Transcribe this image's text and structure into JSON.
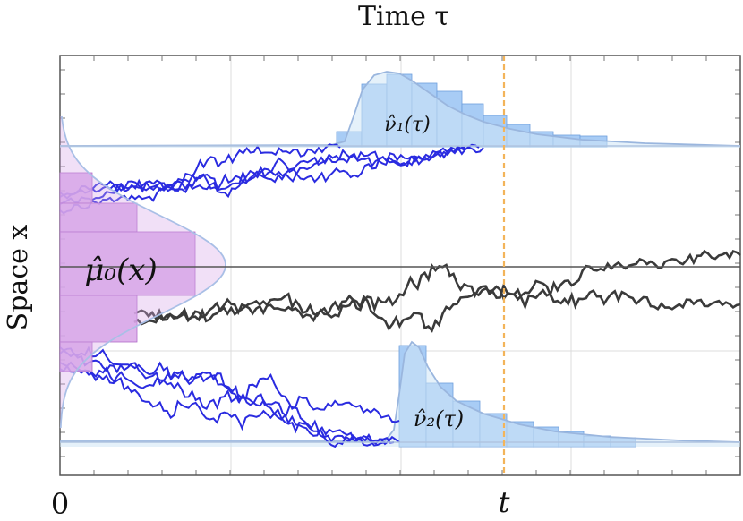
{
  "labels": {
    "x_axis": "Time τ",
    "y_axis": "Space x",
    "origin": "0",
    "t_marker": "t",
    "mu0": "μ̂₀(x)",
    "nu1": "ν̂₁(τ)",
    "nu2": "ν̂₂(τ)"
  },
  "colors": {
    "blue_path": "#2a2be0",
    "black_path": "#3a3a3a",
    "mu_fill": "#d8a6e8",
    "mu_stroke": "#b06cc8",
    "nu_fill": "#a8ccf5",
    "nu_stroke": "#6e9fdd",
    "t_line": "#f3b45a",
    "grid": "#dcdcdc"
  }
}
